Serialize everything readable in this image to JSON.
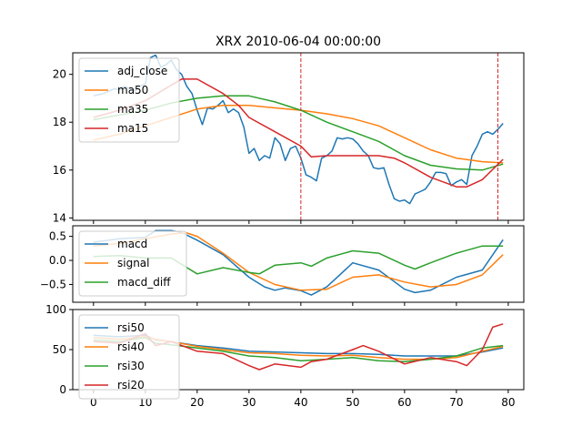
{
  "title": "XRX 2010-06-04 00:00:00",
  "chart_data": [
    {
      "type": "line",
      "xlim": [
        -4,
        83
      ],
      "ylim": [
        13.9,
        20.9
      ],
      "yticks": [
        14,
        16,
        18,
        20
      ],
      "xticks": [],
      "vlines": [
        {
          "x": 40,
          "color": "#d62728"
        },
        {
          "x": 78,
          "color": "#d62728"
        }
      ],
      "legend": "upper-left",
      "series": [
        {
          "name": "adj_close",
          "color": "#1f77b4",
          "x": [
            0,
            1,
            2,
            3,
            4,
            5,
            6,
            7,
            8,
            9,
            10,
            11,
            12,
            13,
            14,
            15,
            16,
            17,
            18,
            19,
            20,
            21,
            22,
            23,
            24,
            25,
            26,
            27,
            28,
            29,
            30,
            31,
            32,
            33,
            34,
            35,
            36,
            37,
            38,
            39,
            40,
            41,
            42,
            43,
            44,
            45,
            46,
            47,
            48,
            49,
            50,
            51,
            52,
            53,
            54,
            55,
            56,
            57,
            58,
            59,
            60,
            61,
            62,
            63,
            64,
            65,
            66,
            67,
            68,
            69,
            70,
            71,
            72,
            73,
            74,
            75,
            76,
            77,
            78,
            79
          ],
          "values": [
            19.1,
            19.15,
            19.2,
            19.3,
            19.4,
            19.35,
            19.5,
            19.4,
            19.3,
            19.5,
            19.6,
            20.7,
            20.8,
            20.3,
            20.4,
            20.6,
            20.2,
            20.0,
            19.5,
            19.2,
            18.5,
            17.9,
            18.6,
            18.55,
            18.7,
            18.9,
            18.4,
            18.55,
            18.4,
            17.8,
            16.7,
            16.9,
            16.4,
            16.6,
            16.5,
            17.35,
            17.1,
            16.4,
            16.9,
            17.0,
            16.5,
            15.8,
            15.7,
            15.55,
            16.5,
            16.6,
            16.8,
            17.35,
            17.3,
            17.35,
            17.3,
            17.1,
            16.8,
            16.6,
            16.1,
            16.05,
            16.1,
            15.4,
            14.8,
            14.7,
            14.75,
            14.6,
            15.0,
            15.1,
            15.2,
            15.5,
            15.9,
            15.9,
            15.85,
            15.35,
            15.5,
            15.6,
            15.4,
            16.6,
            17.0,
            17.5,
            17.6,
            17.5,
            17.7,
            17.95
          ]
        },
        {
          "name": "ma50",
          "color": "#ff7f0e",
          "x": [
            0,
            5,
            10,
            15,
            20,
            25,
            30,
            35,
            40,
            45,
            50,
            55,
            60,
            65,
            70,
            75,
            79
          ],
          "values": [
            17.25,
            17.5,
            17.85,
            18.2,
            18.55,
            18.7,
            18.7,
            18.6,
            18.5,
            18.35,
            18.15,
            17.85,
            17.35,
            16.85,
            16.5,
            16.35,
            16.3
          ]
        },
        {
          "name": "ma35",
          "color": "#2ca02c",
          "x": [
            0,
            5,
            10,
            15,
            20,
            25,
            30,
            35,
            40,
            45,
            50,
            55,
            60,
            65,
            70,
            75,
            79
          ],
          "values": [
            18.1,
            18.3,
            18.5,
            18.8,
            19.0,
            19.1,
            19.1,
            18.85,
            18.5,
            18.0,
            17.6,
            17.2,
            16.6,
            16.2,
            16.05,
            16.0,
            16.25
          ]
        },
        {
          "name": "ma15",
          "color": "#d62728",
          "x": [
            0,
            5,
            10,
            15,
            17,
            20,
            25,
            28,
            30,
            35,
            40,
            42,
            45,
            50,
            55,
            58,
            60,
            65,
            70,
            72,
            75,
            79
          ],
          "values": [
            18.2,
            18.5,
            18.9,
            19.55,
            19.8,
            19.8,
            19.2,
            18.7,
            18.2,
            17.6,
            17.0,
            16.55,
            16.6,
            16.6,
            16.6,
            16.5,
            16.3,
            15.7,
            15.3,
            15.3,
            15.6,
            16.45
          ]
        }
      ]
    },
    {
      "type": "line",
      "xlim": [
        -4,
        83
      ],
      "ylim": [
        -0.87,
        0.72
      ],
      "yticks": [
        0.5,
        0.0,
        -0.5
      ],
      "ytick_labels": [
        "0.5",
        "0.0",
        "−0.5"
      ],
      "xticks": [],
      "legend": "upper-left",
      "series": [
        {
          "name": "macd",
          "color": "#1f77b4",
          "x": [
            0,
            5,
            10,
            12,
            15,
            17,
            20,
            25,
            30,
            33,
            35,
            37,
            40,
            42,
            45,
            50,
            55,
            60,
            62,
            65,
            70,
            75,
            79
          ],
          "values": [
            0.38,
            0.45,
            0.48,
            0.62,
            0.62,
            0.58,
            0.42,
            0.12,
            -0.35,
            -0.55,
            -0.62,
            -0.57,
            -0.63,
            -0.72,
            -0.55,
            -0.05,
            -0.2,
            -0.6,
            -0.67,
            -0.62,
            -0.35,
            -0.2,
            0.43
          ]
        },
        {
          "name": "signal",
          "color": "#ff7f0e",
          "x": [
            0,
            5,
            10,
            15,
            18,
            20,
            25,
            30,
            35,
            40,
            45,
            50,
            55,
            60,
            65,
            70,
            75,
            79
          ],
          "values": [
            0.3,
            0.35,
            0.45,
            0.55,
            0.57,
            0.5,
            0.15,
            -0.25,
            -0.5,
            -0.62,
            -0.6,
            -0.35,
            -0.3,
            -0.45,
            -0.55,
            -0.5,
            -0.3,
            0.12
          ]
        },
        {
          "name": "macd_diff",
          "color": "#2ca02c",
          "x": [
            0,
            5,
            10,
            15,
            20,
            25,
            30,
            32,
            35,
            40,
            42,
            45,
            50,
            55,
            60,
            62,
            65,
            70,
            75,
            79
          ],
          "values": [
            0.08,
            0.1,
            0.05,
            0.05,
            -0.28,
            -0.15,
            -0.25,
            -0.28,
            -0.1,
            -0.05,
            -0.12,
            0.05,
            0.2,
            0.15,
            -0.1,
            -0.18,
            -0.05,
            0.15,
            0.3,
            0.3
          ]
        }
      ]
    },
    {
      "type": "line",
      "xlim": [
        -4,
        83
      ],
      "ylim": [
        0,
        100
      ],
      "yticks": [
        0,
        50,
        100
      ],
      "xticks": [
        0,
        10,
        20,
        30,
        40,
        50,
        60,
        70,
        80
      ],
      "legend": "upper-left",
      "series": [
        {
          "name": "rsi50",
          "color": "#1f77b4",
          "x": [
            0,
            5,
            10,
            12,
            15,
            20,
            25,
            30,
            35,
            40,
            45,
            50,
            55,
            60,
            65,
            70,
            75,
            79
          ],
          "values": [
            68,
            66,
            68,
            62,
            60,
            55,
            52,
            48,
            47,
            46,
            45,
            45,
            44,
            42,
            42,
            42,
            47,
            52
          ]
        },
        {
          "name": "rsi40",
          "color": "#ff7f0e",
          "x": [
            0,
            5,
            10,
            12,
            15,
            20,
            25,
            30,
            35,
            40,
            45,
            50,
            55,
            60,
            65,
            70,
            75,
            79
          ],
          "values": [
            65,
            63,
            66,
            63,
            60,
            54,
            50,
            46,
            45,
            43,
            42,
            43,
            40,
            38,
            38,
            40,
            48,
            54
          ]
        },
        {
          "name": "rsi30",
          "color": "#2ca02c",
          "x": [
            0,
            5,
            10,
            12,
            15,
            20,
            25,
            30,
            35,
            40,
            45,
            50,
            55,
            60,
            65,
            70,
            75,
            79
          ],
          "values": [
            62,
            60,
            65,
            58,
            56,
            52,
            48,
            42,
            40,
            36,
            38,
            40,
            36,
            35,
            38,
            42,
            52,
            55
          ]
        },
        {
          "name": "rsi20",
          "color": "#d62728",
          "x": [
            0,
            5,
            10,
            12,
            15,
            20,
            25,
            30,
            32,
            35,
            40,
            42,
            45,
            50,
            52,
            55,
            60,
            65,
            70,
            72,
            75,
            77,
            79
          ],
          "values": [
            60,
            58,
            70,
            55,
            60,
            48,
            45,
            30,
            25,
            32,
            28,
            35,
            38,
            50,
            55,
            48,
            32,
            40,
            35,
            30,
            50,
            78,
            82
          ]
        }
      ]
    }
  ]
}
